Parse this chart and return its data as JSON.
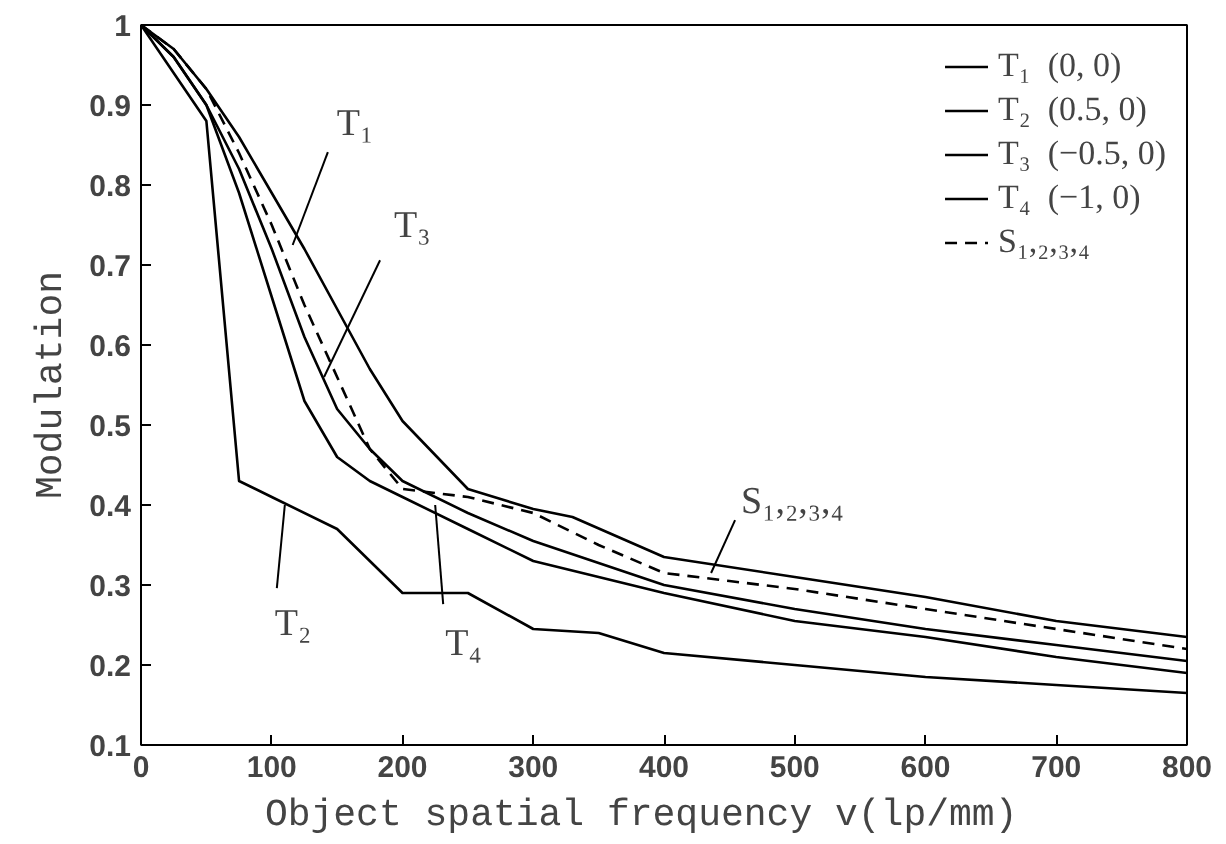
{
  "chart_data": {
    "type": "line",
    "xlabel": "Object spatial frequency   v(lp/mm)",
    "ylabel": "Modulation",
    "xlim": [
      0,
      800
    ],
    "ylim": [
      0.1,
      1
    ],
    "xticks": [
      0,
      100,
      200,
      300,
      400,
      500,
      600,
      700,
      800
    ],
    "yticks": [
      0.1,
      0.2,
      0.3,
      0.4,
      0.5,
      0.6,
      0.7,
      0.8,
      0.9,
      1
    ],
    "grid": false,
    "legend": "top right",
    "line_style": "solid",
    "marker": "none",
    "series": [
      {
        "name": "T₁  (0, 0)",
        "color": "#000000",
        "x": [
          0,
          25,
          50,
          75,
          100,
          125,
          150,
          175,
          200,
          250,
          300,
          330,
          400,
          500,
          600,
          700,
          800
        ],
        "values": [
          1.0,
          0.97,
          0.92,
          0.86,
          0.79,
          0.72,
          0.645,
          0.57,
          0.505,
          0.42,
          0.395,
          0.385,
          0.335,
          0.31,
          0.285,
          0.255,
          0.235
        ]
      },
      {
        "name": "T₂  (0.5, 0)",
        "color": "#000000",
        "x": [
          0,
          25,
          50,
          75,
          100,
          150,
          175,
          200,
          250,
          300,
          350,
          400,
          500,
          600,
          700,
          800
        ],
        "values": [
          1.0,
          0.94,
          0.88,
          0.43,
          0.41,
          0.37,
          0.33,
          0.29,
          0.29,
          0.245,
          0.24,
          0.215,
          0.2,
          0.185,
          0.175,
          0.165
        ]
      },
      {
        "name": "T₃  (−0.5, 0)",
        "color": "#000000",
        "x": [
          0,
          25,
          50,
          75,
          100,
          125,
          150,
          175,
          200,
          250,
          300,
          400,
          500,
          600,
          700,
          800
        ],
        "values": [
          1.0,
          0.96,
          0.9,
          0.82,
          0.72,
          0.61,
          0.52,
          0.47,
          0.43,
          0.39,
          0.355,
          0.3,
          0.27,
          0.245,
          0.225,
          0.205
        ]
      },
      {
        "name": "T₄  (−1, 0)",
        "color": "#000000",
        "x": [
          0,
          25,
          50,
          75,
          100,
          125,
          150,
          175,
          200,
          250,
          300,
          400,
          500,
          600,
          700,
          800
        ],
        "values": [
          1.0,
          0.96,
          0.9,
          0.79,
          0.66,
          0.53,
          0.46,
          0.43,
          0.41,
          0.37,
          0.33,
          0.29,
          0.255,
          0.235,
          0.21,
          0.19
        ]
      },
      {
        "name": "S₁,₂,₃,₄",
        "color": "#000000",
        "line_style": "dashed",
        "x": [
          0,
          25,
          50,
          75,
          100,
          125,
          150,
          175,
          200,
          250,
          300,
          350,
          400,
          450,
          500,
          600,
          700,
          800
        ],
        "values": [
          1.0,
          0.97,
          0.92,
          0.84,
          0.75,
          0.65,
          0.56,
          0.47,
          0.42,
          0.41,
          0.39,
          0.35,
          0.315,
          0.305,
          0.295,
          0.27,
          0.245,
          0.22
        ]
      }
    ],
    "annotations": [
      {
        "text": "T₁",
        "x": 116,
        "y": 0.725
      },
      {
        "text": "T₃",
        "x": 140,
        "y": 0.56
      },
      {
        "text": "T₂",
        "x": 110,
        "y": 0.4
      },
      {
        "text": "T₄",
        "x": 225,
        "y": 0.4
      },
      {
        "text": "S₁,₂,₃,₄",
        "x": 436,
        "y": 0.315
      }
    ]
  }
}
